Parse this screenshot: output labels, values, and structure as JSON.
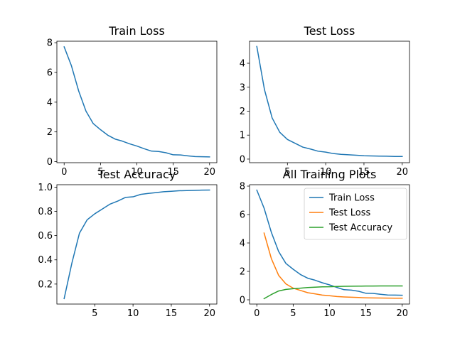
{
  "chart_data": [
    {
      "type": "line",
      "title": "Train Loss",
      "xlabel": "",
      "ylabel": "",
      "xlim": [
        -1,
        21
      ],
      "ylim": [
        -0.07,
        8.1
      ],
      "xticks": [
        0,
        5,
        10,
        15,
        20
      ],
      "yticks": [
        0,
        2,
        4,
        6,
        8
      ],
      "series": [
        {
          "name": "Train Loss",
          "color": "#1f77b4",
          "x": [
            0,
            1,
            2,
            3,
            4,
            5,
            6,
            7,
            8,
            9,
            10,
            11,
            12,
            13,
            14,
            15,
            16,
            17,
            18,
            19,
            20
          ],
          "y": [
            7.72,
            6.45,
            4.75,
            3.4,
            2.56,
            2.15,
            1.78,
            1.52,
            1.38,
            1.2,
            1.05,
            0.87,
            0.71,
            0.68,
            0.6,
            0.46,
            0.45,
            0.39,
            0.34,
            0.33,
            0.32
          ]
        }
      ]
    },
    {
      "type": "line",
      "title": "Test Loss",
      "xlabel": "",
      "ylabel": "",
      "xlim": [
        0.05,
        20.95
      ],
      "ylim": [
        -0.15,
        4.92
      ],
      "xticks": [
        5,
        10,
        15,
        20
      ],
      "yticks": [
        0,
        1,
        2,
        3,
        4
      ],
      "series": [
        {
          "name": "Test Loss",
          "color": "#1f77b4",
          "x": [
            1,
            2,
            3,
            4,
            5,
            6,
            7,
            8,
            9,
            10,
            11,
            12,
            13,
            14,
            15,
            16,
            17,
            18,
            19,
            20
          ],
          "y": [
            4.7,
            2.9,
            1.72,
            1.12,
            0.82,
            0.66,
            0.5,
            0.42,
            0.33,
            0.29,
            0.23,
            0.2,
            0.18,
            0.16,
            0.14,
            0.13,
            0.125,
            0.12,
            0.11,
            0.11
          ]
        }
      ]
    },
    {
      "type": "line",
      "title": "Test Accuracy",
      "xlabel": "",
      "ylabel": "",
      "xlim": [
        0.05,
        20.95
      ],
      "ylim": [
        0.035,
        1.02
      ],
      "xticks": [
        5,
        10,
        15,
        20
      ],
      "yticks": [
        0.2,
        0.4,
        0.6,
        0.8,
        1.0
      ],
      "ytick_labels": [
        "0.2",
        "0.4",
        "0.6",
        "0.8",
        "1.0"
      ],
      "series": [
        {
          "name": "Test Accuracy",
          "color": "#1f77b4",
          "x": [
            1,
            2,
            3,
            4,
            5,
            6,
            7,
            8,
            9,
            10,
            11,
            12,
            13,
            14,
            15,
            16,
            17,
            18,
            19,
            20
          ],
          "y": [
            0.08,
            0.37,
            0.62,
            0.73,
            0.78,
            0.82,
            0.86,
            0.885,
            0.915,
            0.92,
            0.94,
            0.948,
            0.955,
            0.962,
            0.966,
            0.97,
            0.972,
            0.973,
            0.975,
            0.976
          ]
        }
      ]
    },
    {
      "type": "line",
      "title": "All Training Plots",
      "xlabel": "",
      "ylabel": "",
      "xlim": [
        -1,
        21
      ],
      "ylim": [
        -0.3,
        8.1
      ],
      "xticks": [
        0,
        5,
        10,
        15,
        20
      ],
      "yticks": [
        0,
        2,
        4,
        6,
        8
      ],
      "legend": "upper right",
      "series": [
        {
          "name": "Train Loss",
          "color": "#1f77b4",
          "x": [
            0,
            1,
            2,
            3,
            4,
            5,
            6,
            7,
            8,
            9,
            10,
            11,
            12,
            13,
            14,
            15,
            16,
            17,
            18,
            19,
            20
          ],
          "y": [
            7.72,
            6.45,
            4.75,
            3.4,
            2.56,
            2.15,
            1.78,
            1.52,
            1.38,
            1.2,
            1.05,
            0.87,
            0.71,
            0.68,
            0.6,
            0.46,
            0.45,
            0.39,
            0.34,
            0.33,
            0.32
          ]
        },
        {
          "name": "Test Loss",
          "color": "#ff7f0e",
          "x": [
            1,
            2,
            3,
            4,
            5,
            6,
            7,
            8,
            9,
            10,
            11,
            12,
            13,
            14,
            15,
            16,
            17,
            18,
            19,
            20
          ],
          "y": [
            4.7,
            2.9,
            1.72,
            1.12,
            0.82,
            0.66,
            0.5,
            0.42,
            0.33,
            0.29,
            0.23,
            0.2,
            0.18,
            0.16,
            0.14,
            0.13,
            0.125,
            0.12,
            0.11,
            0.11
          ]
        },
        {
          "name": "Test Accuracy",
          "color": "#2ca02c",
          "x": [
            1,
            2,
            3,
            4,
            5,
            6,
            7,
            8,
            9,
            10,
            11,
            12,
            13,
            14,
            15,
            16,
            17,
            18,
            19,
            20
          ],
          "y": [
            0.08,
            0.37,
            0.62,
            0.73,
            0.78,
            0.82,
            0.86,
            0.885,
            0.915,
            0.92,
            0.94,
            0.948,
            0.955,
            0.962,
            0.966,
            0.97,
            0.972,
            0.973,
            0.975,
            0.976
          ]
        }
      ]
    }
  ]
}
